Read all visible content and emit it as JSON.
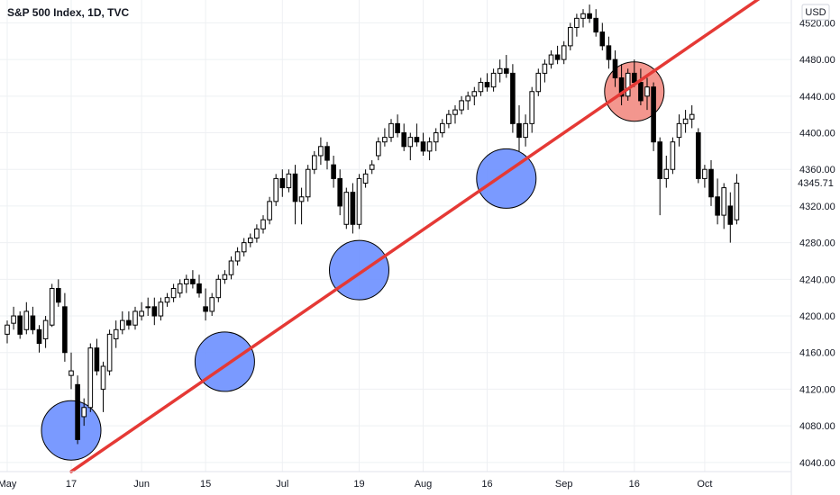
{
  "chart_data": {
    "type": "candlestick",
    "title": "S&P 500 Index, 1D, TVC",
    "currency": "USD",
    "last_price": "4345.71",
    "ylim": [
      4030,
      4545
    ],
    "y_ticks": [
      "4040.00",
      "4080.00",
      "4120.00",
      "4160.00",
      "4200.00",
      "4240.00",
      "4280.00",
      "4320.00",
      "4360.00",
      "4400.00",
      "4440.00",
      "4480.00",
      "4520.00"
    ],
    "x_labels": [
      "May",
      "17",
      "Jun",
      "15",
      "Jul",
      "19",
      "Aug",
      "16",
      "Sep",
      "16",
      "Oct"
    ],
    "grid": true,
    "trendline": {
      "start": [
        "2021-05-17",
        4030
      ],
      "end": [
        "2021-10-06",
        4520
      ],
      "color": "#e53935"
    },
    "circles": [
      {
        "date": "2021-05-17",
        "price": 4075,
        "color": "blue"
      },
      {
        "date": "2021-06-18",
        "price": 4150,
        "color": "blue"
      },
      {
        "date": "2021-07-19",
        "price": 4250,
        "color": "blue"
      },
      {
        "date": "2021-08-19",
        "price": 4350,
        "color": "blue"
      },
      {
        "date": "2021-09-16",
        "price": 4445,
        "color": "red"
      }
    ],
    "colors": {
      "up_fill": "#ffffff",
      "down_fill": "#000000",
      "candle_edge": "#000000",
      "blue_circle": "#6c8fff",
      "red_circle": "#f28b82"
    },
    "candles": [
      [
        4180,
        4195,
        4170,
        4190
      ],
      [
        4192,
        4210,
        4185,
        4200
      ],
      [
        4200,
        4205,
        4175,
        4180
      ],
      [
        4185,
        4215,
        4180,
        4205
      ],
      [
        4200,
        4210,
        4180,
        4185
      ],
      [
        4185,
        4190,
        4160,
        4170
      ],
      [
        4175,
        4200,
        4165,
        4195
      ],
      [
        4190,
        4235,
        4188,
        4230
      ],
      [
        4230,
        4240,
        4210,
        4215
      ],
      [
        4210,
        4225,
        4150,
        4160
      ],
      [
        4135,
        4160,
        4120,
        4140
      ],
      [
        4125,
        4135,
        4060,
        4065
      ],
      [
        4090,
        4110,
        4080,
        4100
      ],
      [
        4100,
        4170,
        4095,
        4165
      ],
      [
        4165,
        4175,
        4135,
        4140
      ],
      [
        4120,
        4150,
        4095,
        4145
      ],
      [
        4140,
        4185,
        4135,
        4180
      ],
      [
        4175,
        4195,
        4165,
        4185
      ],
      [
        4185,
        4205,
        4180,
        4195
      ],
      [
        4195,
        4205,
        4185,
        4190
      ],
      [
        4190,
        4210,
        4185,
        4205
      ],
      [
        4200,
        4215,
        4195,
        4205
      ],
      [
        4210,
        4220,
        4200,
        4210
      ],
      [
        4210,
        4220,
        4190,
        4200
      ],
      [
        4200,
        4220,
        4195,
        4215
      ],
      [
        4215,
        4225,
        4210,
        4220
      ],
      [
        4220,
        4235,
        4215,
        4230
      ],
      [
        4225,
        4240,
        4220,
        4235
      ],
      [
        4235,
        4245,
        4225,
        4240
      ],
      [
        4240,
        4250,
        4230,
        4235
      ],
      [
        4235,
        4245,
        4220,
        4225
      ],
      [
        4210,
        4230,
        4195,
        4205
      ],
      [
        4205,
        4225,
        4200,
        4220
      ],
      [
        4220,
        4245,
        4215,
        4240
      ],
      [
        4240,
        4250,
        4235,
        4245
      ],
      [
        4245,
        4265,
        4240,
        4260
      ],
      [
        4260,
        4275,
        4255,
        4270
      ],
      [
        4270,
        4285,
        4265,
        4280
      ],
      [
        4280,
        4290,
        4275,
        4285
      ],
      [
        4285,
        4300,
        4280,
        4295
      ],
      [
        4295,
        4310,
        4290,
        4305
      ],
      [
        4305,
        4330,
        4300,
        4325
      ],
      [
        4325,
        4355,
        4320,
        4350
      ],
      [
        4350,
        4360,
        4330,
        4340
      ],
      [
        4340,
        4360,
        4335,
        4355
      ],
      [
        4355,
        4365,
        4300,
        4325
      ],
      [
        4325,
        4340,
        4300,
        4330
      ],
      [
        4330,
        4365,
        4325,
        4360
      ],
      [
        4360,
        4380,
        4355,
        4375
      ],
      [
        4375,
        4395,
        4365,
        4385
      ],
      [
        4385,
        4390,
        4360,
        4370
      ],
      [
        4365,
        4375,
        4340,
        4350
      ],
      [
        4350,
        4360,
        4310,
        4320
      ],
      [
        4300,
        4340,
        4295,
        4335
      ],
      [
        4335,
        4345,
        4290,
        4300
      ],
      [
        4300,
        4355,
        4295,
        4350
      ],
      [
        4345,
        4360,
        4340,
        4355
      ],
      [
        4360,
        4370,
        4355,
        4365
      ],
      [
        4375,
        4395,
        4370,
        4390
      ],
      [
        4390,
        4405,
        4385,
        4395
      ],
      [
        4395,
        4415,
        4390,
        4410
      ],
      [
        4410,
        4420,
        4395,
        4400
      ],
      [
        4400,
        4410,
        4380,
        4385
      ],
      [
        4385,
        4400,
        4370,
        4395
      ],
      [
        4395,
        4410,
        4385,
        4390
      ],
      [
        4390,
        4400,
        4375,
        4380
      ],
      [
        4380,
        4395,
        4370,
        4390
      ],
      [
        4390,
        4405,
        4380,
        4400
      ],
      [
        4400,
        4415,
        4395,
        4410
      ],
      [
        4410,
        4425,
        4405,
        4420
      ],
      [
        4420,
        4430,
        4410,
        4425
      ],
      [
        4425,
        4440,
        4420,
        4435
      ],
      [
        4435,
        4445,
        4425,
        4440
      ],
      [
        4440,
        4450,
        4430,
        4445
      ],
      [
        4445,
        4460,
        4440,
        4455
      ],
      [
        4455,
        4465,
        4445,
        4450
      ],
      [
        4450,
        4470,
        4445,
        4465
      ],
      [
        4465,
        4480,
        4455,
        4470
      ],
      [
        4470,
        4485,
        4460,
        4465
      ],
      [
        4465,
        4475,
        4400,
        4410
      ],
      [
        4410,
        4430,
        4380,
        4395
      ],
      [
        4395,
        4420,
        4385,
        4410
      ],
      [
        4410,
        4450,
        4400,
        4445
      ],
      [
        4445,
        4470,
        4440,
        4465
      ],
      [
        4465,
        4480,
        4455,
        4475
      ],
      [
        4475,
        4490,
        4470,
        4485
      ],
      [
        4485,
        4495,
        4475,
        4480
      ],
      [
        4480,
        4500,
        4475,
        4495
      ],
      [
        4495,
        4520,
        4490,
        4515
      ],
      [
        4515,
        4530,
        4505,
        4525
      ],
      [
        4525,
        4535,
        4515,
        4530
      ],
      [
        4530,
        4540,
        4520,
        4525
      ],
      [
        4525,
        4535,
        4505,
        4510
      ],
      [
        4510,
        4520,
        4490,
        4495
      ],
      [
        4495,
        4505,
        4470,
        4480
      ],
      [
        4480,
        4490,
        4450,
        4460
      ],
      [
        4460,
        4475,
        4430,
        4440
      ],
      [
        4440,
        4470,
        4435,
        4465
      ],
      [
        4465,
        4480,
        4450,
        4455
      ],
      [
        4455,
        4470,
        4430,
        4435
      ],
      [
        4440,
        4460,
        4425,
        4450
      ],
      [
        4450,
        4455,
        4380,
        4390
      ],
      [
        4390,
        4395,
        4310,
        4350
      ],
      [
        4350,
        4375,
        4340,
        4360
      ],
      [
        4360,
        4395,
        4355,
        4390
      ],
      [
        4395,
        4420,
        4385,
        4410
      ],
      [
        4410,
        4425,
        4400,
        4415
      ],
      [
        4415,
        4430,
        4405,
        4420
      ],
      [
        4400,
        4405,
        4345,
        4350
      ],
      [
        4350,
        4365,
        4340,
        4360
      ],
      [
        4360,
        4370,
        4320,
        4330
      ],
      [
        4330,
        4350,
        4300,
        4310
      ],
      [
        4310,
        4345,
        4295,
        4340
      ],
      [
        4320,
        4335,
        4280,
        4300
      ],
      [
        4305,
        4355,
        4300,
        4345
      ]
    ]
  }
}
